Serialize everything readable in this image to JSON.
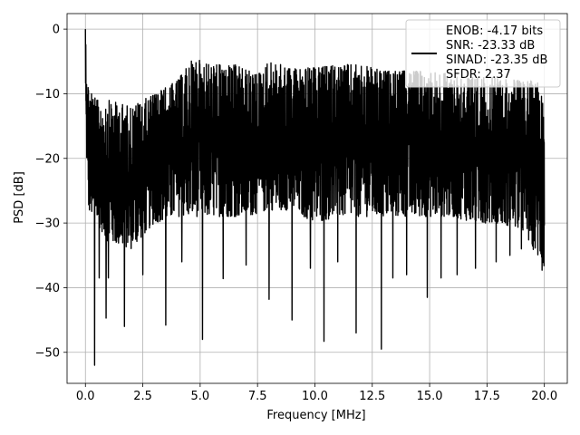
{
  "chart_data": {
    "type": "line",
    "title": "",
    "xlabel": "Frequency [MHz]",
    "ylabel": "PSD [dB]",
    "xlim": [
      -0.8,
      21.0
    ],
    "ylim": [
      -54.8,
      2.4
    ],
    "xticks": [
      0.0,
      2.5,
      5.0,
      7.5,
      10.0,
      12.5,
      15.0,
      17.5,
      20.0
    ],
    "xtick_labels": [
      "0.0",
      "2.5",
      "5.0",
      "7.5",
      "10.0",
      "12.5",
      "15.0",
      "17.5",
      "20.0"
    ],
    "yticks": [
      0,
      -10,
      -20,
      -30,
      -40,
      -50
    ],
    "ytick_labels": [
      "0",
      "−10",
      "−20",
      "−30",
      "−40",
      "−50"
    ],
    "grid": true,
    "legend": {
      "placement": "top-right",
      "entries": [
        "ENOB: -4.17 bits",
        "SNR: -23.33 dB",
        "SINAD: -23.35 dB",
        "SFDR: 2.37"
      ]
    },
    "series": [
      {
        "color": "#000000",
        "x_range": [
          0.0,
          20.0
        ],
        "peak": {
          "x": 0.0,
          "y": 0.0
        },
        "envelope_upper": [
          [
            0.0,
            0.0
          ],
          [
            0.1,
            -8.0
          ],
          [
            0.5,
            -11.0
          ],
          [
            1.0,
            -11.0
          ],
          [
            2.0,
            -12.0
          ],
          [
            3.0,
            -10.0
          ],
          [
            4.0,
            -8.0
          ],
          [
            4.7,
            -4.5
          ],
          [
            5.5,
            -5.5
          ],
          [
            6.5,
            -5.5
          ],
          [
            7.5,
            -7.0
          ],
          [
            8.0,
            -5.0
          ],
          [
            9.0,
            -6.0
          ],
          [
            10.0,
            -6.0
          ],
          [
            11.0,
            -5.5
          ],
          [
            12.0,
            -5.5
          ],
          [
            13.0,
            -6.5
          ],
          [
            14.0,
            -6.5
          ],
          [
            15.0,
            -6.5
          ],
          [
            16.0,
            -7.0
          ],
          [
            17.0,
            -7.5
          ],
          [
            18.0,
            -7.5
          ],
          [
            19.0,
            -8.0
          ],
          [
            20.0,
            -8.0
          ]
        ],
        "envelope_lower": [
          [
            0.0,
            -10.0
          ],
          [
            0.1,
            -28.0
          ],
          [
            0.5,
            -30.0
          ],
          [
            1.0,
            -33.0
          ],
          [
            2.0,
            -34.0
          ],
          [
            3.0,
            -30.0
          ],
          [
            4.0,
            -29.0
          ],
          [
            5.0,
            -29.0
          ],
          [
            6.0,
            -29.0
          ],
          [
            7.0,
            -29.0
          ],
          [
            8.0,
            -28.0
          ],
          [
            9.0,
            -28.0
          ],
          [
            10.0,
            -30.0
          ],
          [
            11.0,
            -29.0
          ],
          [
            12.0,
            -29.0
          ],
          [
            13.0,
            -29.0
          ],
          [
            14.0,
            -29.0
          ],
          [
            15.0,
            -29.0
          ],
          [
            16.0,
            -29.0
          ],
          [
            17.0,
            -30.0
          ],
          [
            18.0,
            -30.0
          ],
          [
            19.0,
            -31.0
          ],
          [
            20.0,
            -37.0
          ]
        ],
        "deep_nulls": [
          [
            0.4,
            -52.0
          ],
          [
            0.6,
            -38.5
          ],
          [
            0.9,
            -44.7
          ],
          [
            1.0,
            -38.5
          ],
          [
            1.7,
            -46.0
          ],
          [
            2.5,
            -38.0
          ],
          [
            3.5,
            -45.8
          ],
          [
            4.2,
            -36.0
          ],
          [
            5.1,
            -48.0
          ],
          [
            6.0,
            -38.6
          ],
          [
            7.0,
            -36.5
          ],
          [
            8.0,
            -41.8
          ],
          [
            9.0,
            -45.0
          ],
          [
            9.8,
            -37.0
          ],
          [
            10.4,
            -48.3
          ],
          [
            11.0,
            -36.0
          ],
          [
            11.8,
            -47.0
          ],
          [
            12.9,
            -49.5
          ],
          [
            13.4,
            -38.5
          ],
          [
            14.0,
            -38.0
          ],
          [
            14.9,
            -41.5
          ],
          [
            15.5,
            -38.5
          ],
          [
            16.2,
            -38.0
          ],
          [
            17.0,
            -37.0
          ],
          [
            17.9,
            -36.0
          ],
          [
            18.5,
            -35.0
          ],
          [
            19.0,
            -34.0
          ],
          [
            19.9,
            -37.3
          ]
        ]
      }
    ]
  }
}
